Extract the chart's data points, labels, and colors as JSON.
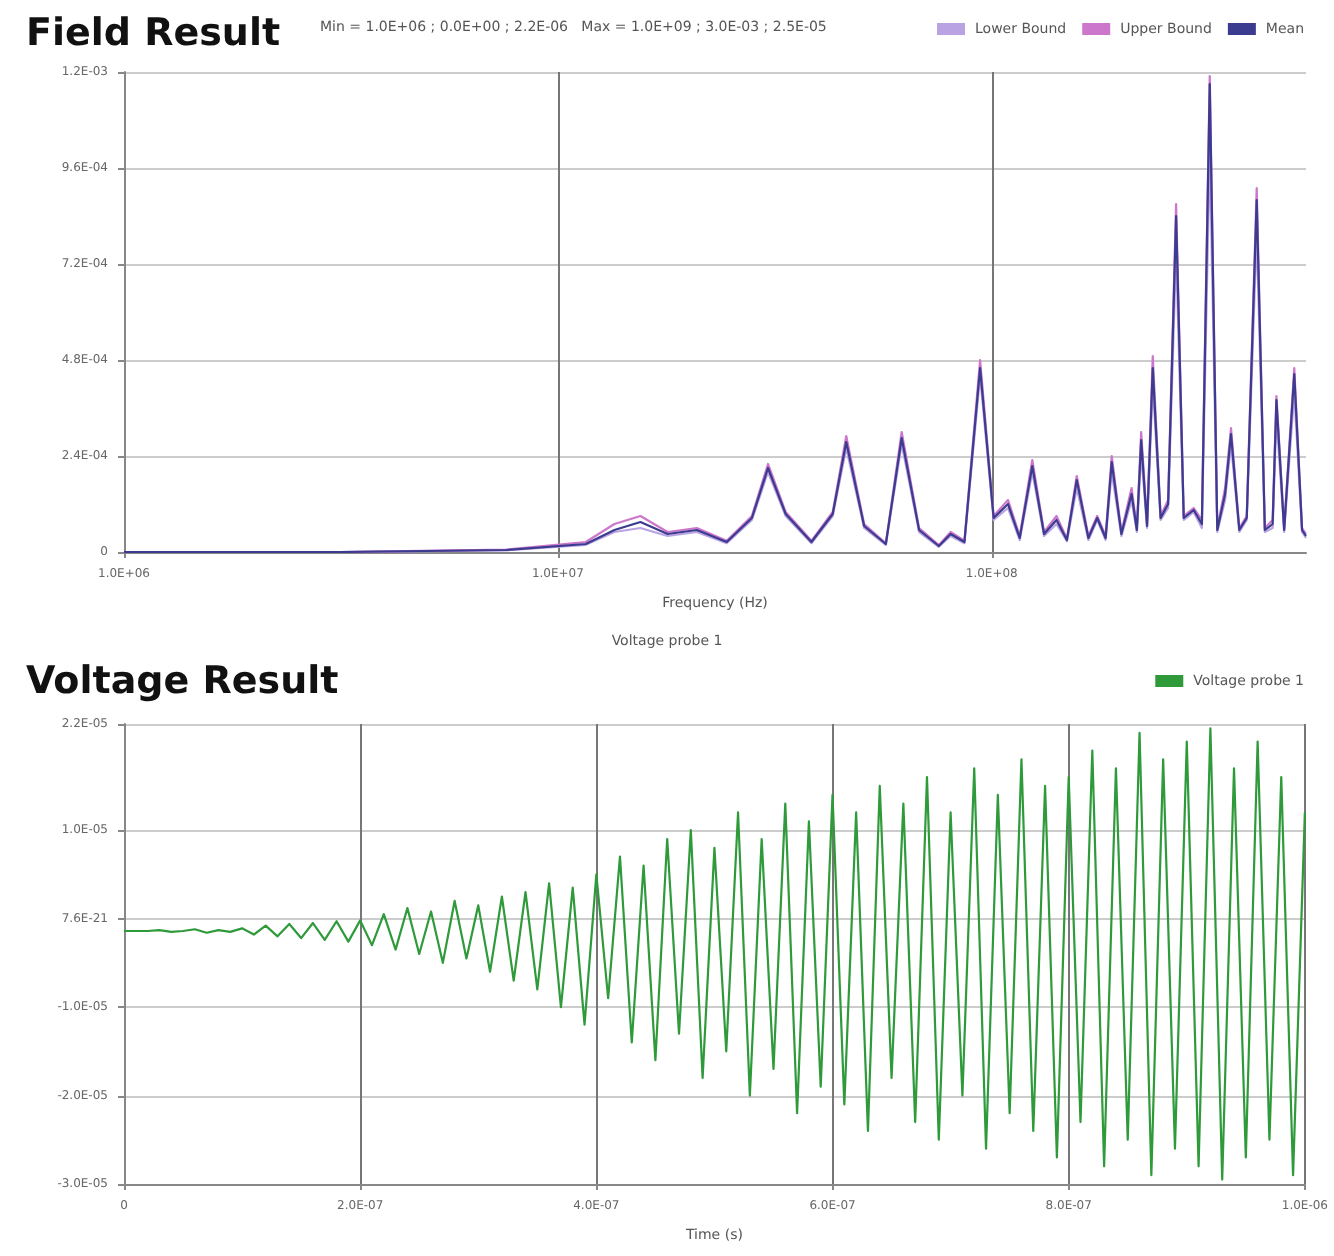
{
  "chart_data": [
    {
      "type": "line",
      "title": "Field Result",
      "xlabel": "Frequency (Hz)",
      "annotations": [
        "Min = 1.0E+06 ; 0.0E+00 ; 2.2E-06   Max = 1.0E+09 ; 3.0E-03 ; 2.5E-05"
      ],
      "log": "x",
      "grid": true,
      "legend": "top right",
      "xlim": [
        1000000,
        530000000
      ],
      "xticks": [
        {
          "value": 1000000,
          "label": "1.0E+06"
        },
        {
          "value": 10000000,
          "label": "1.0E+07"
        },
        {
          "value": 100000000,
          "label": "1.0E+08"
        }
      ],
      "ylim": [
        0,
        0.0012
      ],
      "yticks": [
        0,
        {
          "value": 0.00024,
          "label": "2.4E-04"
        },
        {
          "value": 0.00048,
          "label": "4.8E-04"
        },
        {
          "value": 0.00072,
          "label": "7.2E-04"
        },
        {
          "value": 0.00096,
          "label": "9.6E-04"
        },
        {
          "value": 0.0012,
          "label": "1.2E-03"
        }
      ],
      "x": [
        1000000,
        3150000,
        7600000,
        11600000,
        13500000,
        15500000,
        17900000,
        20900000,
        24500000,
        28000000,
        30500000,
        33500000,
        38400000,
        43000000,
        46200000,
        50800000,
        57000000,
        62000000,
        68000000,
        75500000,
        80400000,
        86500000,
        94000000,
        101000000,
        109000000,
        116000000,
        124000000,
        132000000,
        141000000,
        149000000,
        157000000,
        167000000,
        175000000,
        183000000,
        189000000,
        199000000,
        210000000,
        216000000,
        221000000,
        228000000,
        235000000,
        245000000,
        255000000,
        266000000,
        277000000,
        292000000,
        305000000,
        318000000,
        331000000,
        345000000,
        356000000,
        372000000,
        387000000,
        408000000,
        426000000,
        444000000,
        453000000,
        472000000,
        498000000,
        519000000,
        530000000
      ],
      "series": [
        {
          "name": "Lower Bound",
          "color": "#b9a3e3",
          "values": [
            0,
            0,
            4e-06,
            1.8e-05,
            5e-05,
            6e-05,
            4e-05,
            5e-05,
            2.2e-05,
            8e-05,
            0.0002,
            9e-05,
            2.2e-05,
            9e-05,
            0.00026,
            6e-05,
            1.8e-05,
            0.00027,
            5e-05,
            1.3e-05,
            4e-05,
            2.2e-05,
            0.00044,
            8e-05,
            0.00011,
            3e-05,
            0.0002,
            4e-05,
            7e-05,
            2.7e-05,
            0.00016,
            3e-05,
            8e-05,
            3e-05,
            0.0002,
            4e-05,
            0.00013,
            5e-05,
            0.00025,
            6e-05,
            0.00042,
            8e-05,
            0.00011,
            0.00075,
            8e-05,
            0.0001,
            6e-05,
            0.001,
            5e-05,
            0.00013,
            0.00027,
            5e-05,
            8e-05,
            0.0008,
            5e-05,
            6e-05,
            0.00034,
            5e-05,
            0.0004,
            5e-05,
            3.5e-05
          ]
        },
        {
          "name": "Upper Bound",
          "color": "#cc77cc",
          "values": [
            0,
            0,
            6e-06,
            2.5e-05,
            7e-05,
            9e-05,
            5e-05,
            6e-05,
            2.8e-05,
            9e-05,
            0.00022,
            0.0001,
            2.8e-05,
            0.0001,
            0.00029,
            7e-05,
            2.2e-05,
            0.0003,
            6e-05,
            1.7e-05,
            5e-05,
            2.8e-05,
            0.00048,
            9e-05,
            0.00013,
            4e-05,
            0.00023,
            5e-05,
            9e-05,
            3.3e-05,
            0.00019,
            4e-05,
            9e-05,
            4e-05,
            0.00024,
            5e-05,
            0.00016,
            6e-05,
            0.0003,
            7e-05,
            0.00049,
            9e-05,
            0.00013,
            0.00087,
            9e-05,
            0.00011,
            8e-05,
            0.00119,
            6e-05,
            0.00016,
            0.00031,
            6e-05,
            9e-05,
            0.00091,
            6e-05,
            8e-05,
            0.00039,
            6e-05,
            0.00046,
            6e-05,
            4.5e-05
          ]
        },
        {
          "name": "Mean",
          "color": "#3b3b8f",
          "values": [
            0,
            0,
            5e-06,
            2e-05,
            5.5e-05,
            7.5e-05,
            4.5e-05,
            5.5e-05,
            2.5e-05,
            8.5e-05,
            0.00021,
            9.5e-05,
            2.5e-05,
            9.5e-05,
            0.000275,
            6.5e-05,
            2e-05,
            0.000285,
            5.5e-05,
            1.5e-05,
            4.5e-05,
            2.5e-05,
            0.00046,
            8.5e-05,
            0.00012,
            3.5e-05,
            0.000215,
            4.5e-05,
            8e-05,
            3e-05,
            0.00018,
            3.5e-05,
            8.5e-05,
            3.5e-05,
            0.000225,
            4.5e-05,
            0.000145,
            5.5e-05,
            0.00028,
            6.5e-05,
            0.00046,
            8.5e-05,
            0.00012,
            0.00084,
            8.5e-05,
            0.000105,
            7e-05,
            0.00117,
            5.5e-05,
            0.000145,
            0.000295,
            5.5e-05,
            8.5e-05,
            0.00088,
            5.5e-05,
            7e-05,
            0.00038,
            5.5e-05,
            0.000445,
            5.5e-05,
            4e-05
          ]
        }
      ]
    },
    {
      "type": "line",
      "title": "Voltage Result",
      "subtitle": "Voltage probe 1",
      "xlabel": "Time (s)",
      "grid": true,
      "legend": "top right",
      "xlim": [
        0,
        1e-06
      ],
      "xticks": [
        0,
        {
          "value": 2e-07,
          "label": "2.0E-07"
        },
        {
          "value": 4e-07,
          "label": "4.0E-07"
        },
        {
          "value": 6e-07,
          "label": "6.0E-07"
        },
        {
          "value": 8e-07,
          "label": "8.0E-07"
        },
        {
          "value": 1e-06,
          "label": "1.0E-06"
        }
      ],
      "ylim": [
        -3e-05,
        2.2e-05
      ],
      "yticks": [
        {
          "value": -3e-05,
          "label": "-3.0E-05"
        },
        {
          "value": -2e-05,
          "label": "-2.0E-05"
        },
        {
          "value": -1e-05,
          "label": "-1.0E-05"
        },
        {
          "value": 7.6e-21,
          "label": "7.6E-21"
        },
        {
          "value": 1e-05,
          "label": "1.0E-05"
        },
        {
          "value": 2.2e-05,
          "label": "2.2E-05"
        }
      ],
      "x": [
        0,
        1e-08,
        2e-08,
        3e-08,
        4e-08,
        5e-08,
        6e-08,
        7e-08,
        8e-08,
        9e-08,
        1e-07,
        1.1e-07,
        1.2e-07,
        1.3e-07,
        1.4e-07,
        1.5e-07,
        1.6e-07,
        1.7e-07,
        1.8e-07,
        1.9e-07,
        2e-07,
        2.1e-07,
        2.2e-07,
        2.3e-07,
        2.4e-07,
        2.5e-07,
        2.6e-07,
        2.7e-07,
        2.8e-07,
        2.9e-07,
        3e-07,
        3.1e-07,
        3.2e-07,
        3.3e-07,
        3.4e-07,
        3.5e-07,
        3.6e-07,
        3.7e-07,
        3.8e-07,
        3.9e-07,
        4e-07,
        4.1e-07,
        4.2e-07,
        4.3e-07,
        4.4e-07,
        4.5e-07,
        4.6e-07,
        4.7e-07,
        4.8e-07,
        4.9e-07,
        5e-07,
        5.1e-07,
        5.2e-07,
        5.3e-07,
        5.4e-07,
        5.5e-07,
        5.6e-07,
        5.7e-07,
        5.8e-07,
        5.9e-07,
        6e-07,
        6.1e-07,
        6.2e-07,
        6.3e-07,
        6.4e-07,
        6.5e-07,
        6.6e-07,
        6.7e-07,
        6.8e-07,
        6.9e-07,
        7e-07,
        7.1e-07,
        7.2e-07,
        7.3e-07,
        7.4e-07,
        7.5e-07,
        7.6e-07,
        7.7e-07,
        7.8e-07,
        7.9e-07,
        8e-07,
        8.1e-07,
        8.2e-07,
        8.3e-07,
        8.4e-07,
        8.5e-07,
        8.6e-07,
        8.7e-07,
        8.8e-07,
        8.9e-07,
        9e-07,
        9.1e-07,
        9.2e-07,
        9.3e-07,
        9.4e-07,
        9.5e-07,
        9.6e-07,
        9.7e-07,
        9.8e-07,
        9.9e-07,
        1e-06
      ],
      "series": [
        {
          "name": "Voltage probe 1",
          "color": "#2e9a3a",
          "values": [
            -1.4e-06,
            -1.4e-06,
            -1.4e-06,
            -1.3e-06,
            -1.5e-06,
            -1.4e-06,
            -1.2e-06,
            -1.6e-06,
            -1.3e-06,
            -1.5e-06,
            -1.1e-06,
            -1.8e-06,
            -8e-07,
            -2e-06,
            -6e-07,
            -2.2e-06,
            -5e-07,
            -2.4e-06,
            -3e-07,
            -2.6e-06,
            -2e-07,
            -3e-06,
            5e-07,
            -3.5e-06,
            1.2e-06,
            -4e-06,
            8e-07,
            -5e-06,
            2e-06,
            -4.5e-06,
            1.5e-06,
            -6e-06,
            2.5e-06,
            -7e-06,
            3e-06,
            -8e-06,
            4e-06,
            -1e-05,
            3.5e-06,
            -1.2e-05,
            5e-06,
            -9e-06,
            7e-06,
            -1.4e-05,
            6e-06,
            -1.6e-05,
            9e-06,
            -1.3e-05,
            1e-05,
            -1.8e-05,
            8e-06,
            -1.5e-05,
            1.2e-05,
            -2e-05,
            9e-06,
            -1.7e-05,
            1.3e-05,
            -2.2e-05,
            1.1e-05,
            -1.9e-05,
            1.4e-05,
            -2.1e-05,
            1.2e-05,
            -2.4e-05,
            1.5e-05,
            -1.8e-05,
            1.3e-05,
            -2.3e-05,
            1.6e-05,
            -2.5e-05,
            1.2e-05,
            -2e-05,
            1.7e-05,
            -2.6e-05,
            1.4e-05,
            -2.2e-05,
            1.8e-05,
            -2.4e-05,
            1.5e-05,
            -2.7e-05,
            1.6e-05,
            -2.3e-05,
            1.9e-05,
            -2.8e-05,
            1.7e-05,
            -2.5e-05,
            2.1e-05,
            -2.9e-05,
            1.8e-05,
            -2.6e-05,
            2e-05,
            -2.8e-05,
            2.15e-05,
            -2.95e-05,
            1.7e-05,
            -2.7e-05,
            2e-05,
            -2.5e-05,
            1.6e-05,
            -2.9e-05,
            1.2e-05
          ]
        }
      ]
    }
  ]
}
